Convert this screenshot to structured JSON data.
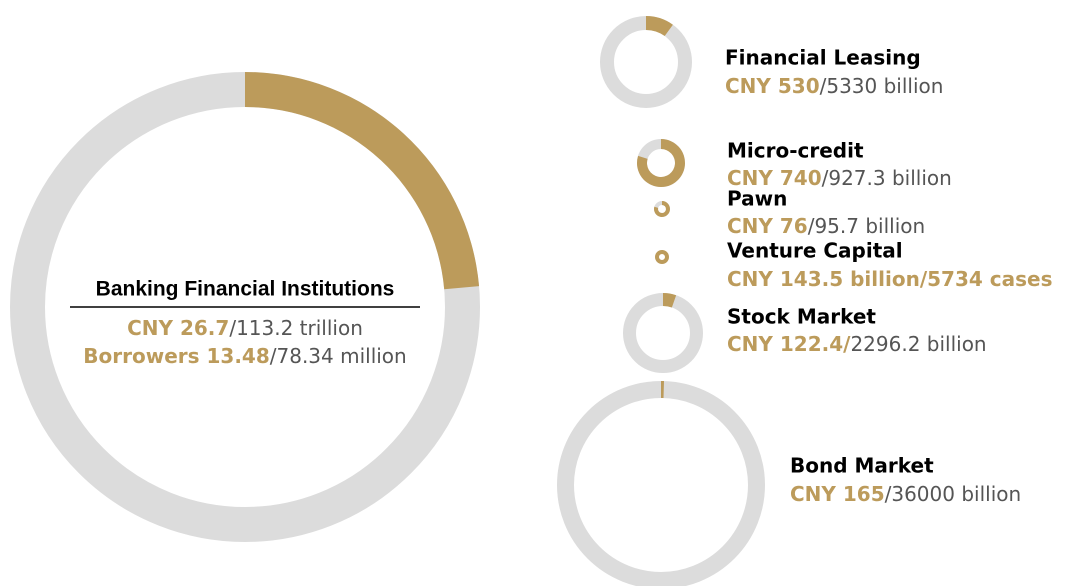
{
  "chart_data": [
    {
      "type": "donut",
      "title": "Banking Financial Institutions",
      "values": [
        26.7,
        113.2
      ],
      "value_labels": [
        "CNY 26.7",
        "/113.2 trillion"
      ],
      "colors": [
        "#bc9b5b",
        "#dcdcdc"
      ],
      "secondary": {
        "values": [
          13.48,
          78.34
        ],
        "value_labels": [
          "Borrowers 13.48",
          "/78.34 million"
        ]
      }
    },
    {
      "type": "donut",
      "title": "Financial Leasing",
      "values": [
        530,
        5330
      ],
      "value_labels": [
        "CNY 530",
        "/5330 billion"
      ],
      "colors": [
        "#bc9b5b",
        "#dcdcdc"
      ]
    },
    {
      "type": "donut",
      "title": "Micro-credit",
      "values": [
        740,
        927.3
      ],
      "value_labels": [
        "CNY 740",
        "/927.3 billion"
      ],
      "colors": [
        "#bc9b5b",
        "#dcdcdc"
      ]
    },
    {
      "type": "donut",
      "title": "Pawn",
      "values": [
        76,
        95.7
      ],
      "value_labels": [
        "CNY 76",
        "/95.7 billion"
      ],
      "colors": [
        "#bc9b5b",
        "#dcdcdc"
      ]
    },
    {
      "type": "donut",
      "title": "Venture Capital",
      "values": [
        143.5,
        5734
      ],
      "value_labels": [
        "CNY 143.5 billion",
        "/5734 cases"
      ],
      "colors": [
        "#bc9b5b",
        "#bc9b5b"
      ]
    },
    {
      "type": "donut",
      "title": "Stock Market",
      "values": [
        122.4,
        2296.2
      ],
      "value_labels": [
        "CNY 122.4/",
        "2296.2 billion"
      ],
      "colors": [
        "#bc9b5b",
        "#dcdcdc"
      ]
    },
    {
      "type": "donut",
      "title": "Bond Market",
      "values": [
        165,
        36000
      ],
      "value_labels": [
        "CNY 165",
        "/36000 billion"
      ],
      "colors": [
        "#bc9b5b",
        "#dcdcdc"
      ]
    }
  ]
}
